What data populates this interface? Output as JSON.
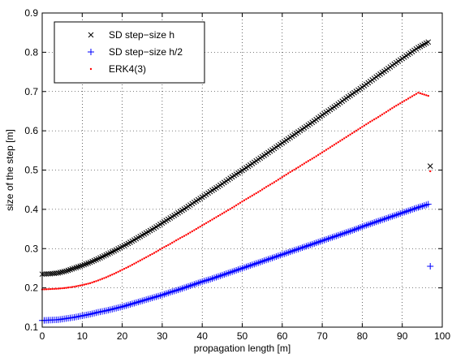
{
  "chart_data": {
    "type": "scatter",
    "title": "",
    "xlabel": "propagation length [m]",
    "ylabel": "size of the step [m]",
    "xlim": [
      0,
      100
    ],
    "ylim": [
      0.1,
      0.9
    ],
    "xticks": [
      0,
      10,
      20,
      30,
      40,
      50,
      60,
      70,
      80,
      90,
      100
    ],
    "yticks": [
      0.1,
      0.2,
      0.3,
      0.4,
      0.5,
      0.6,
      0.7,
      0.8,
      0.9
    ],
    "xtick_labels": [
      "0",
      "10",
      "20",
      "30",
      "40",
      "50",
      "60",
      "70",
      "80",
      "90",
      "100"
    ],
    "ytick_labels": [
      "0.1",
      "0.2",
      "0.3",
      "0.4",
      "0.5",
      "0.6",
      "0.7",
      "0.8",
      "0.9"
    ],
    "grid": true,
    "legend_position": "top-left",
    "series": [
      {
        "name": "SD step−size h",
        "marker": "x",
        "color": "#000000",
        "x": [
          0,
          2,
          4,
          6,
          8,
          10,
          12,
          14,
          16,
          18,
          20,
          22,
          24,
          26,
          28,
          30,
          32,
          34,
          36,
          38,
          40,
          42,
          44,
          46,
          48,
          50,
          52,
          54,
          56,
          58,
          60,
          62,
          64,
          66,
          68,
          70,
          72,
          74,
          76,
          78,
          80,
          82,
          84,
          86,
          88,
          90,
          92,
          94,
          96.5
        ],
        "y": [
          0.235,
          0.236,
          0.238,
          0.243,
          0.25,
          0.257,
          0.265,
          0.274,
          0.284,
          0.294,
          0.305,
          0.316,
          0.328,
          0.34,
          0.352,
          0.365,
          0.378,
          0.391,
          0.404,
          0.418,
          0.431,
          0.445,
          0.458,
          0.472,
          0.486,
          0.499,
          0.513,
          0.527,
          0.541,
          0.555,
          0.569,
          0.583,
          0.597,
          0.611,
          0.625,
          0.64,
          0.654,
          0.668,
          0.683,
          0.697,
          0.711,
          0.726,
          0.741,
          0.755,
          0.77,
          0.784,
          0.798,
          0.812,
          0.826
        ],
        "outlier": {
          "x": 97,
          "y": 0.51
        }
      },
      {
        "name": "SD step−size h/2",
        "marker": "+",
        "color": "#0000ff",
        "x": [
          0,
          2,
          4,
          6,
          8,
          10,
          12,
          14,
          16,
          18,
          20,
          22,
          24,
          26,
          28,
          30,
          32,
          34,
          36,
          38,
          40,
          42,
          44,
          46,
          48,
          50,
          52,
          54,
          56,
          58,
          60,
          62,
          64,
          66,
          68,
          70,
          72,
          74,
          76,
          78,
          80,
          82,
          84,
          86,
          88,
          90,
          92,
          94,
          96.5
        ],
        "y": [
          0.117,
          0.118,
          0.119,
          0.122,
          0.125,
          0.129,
          0.133,
          0.138,
          0.142,
          0.147,
          0.152,
          0.158,
          0.164,
          0.17,
          0.176,
          0.182,
          0.189,
          0.195,
          0.202,
          0.209,
          0.216,
          0.222,
          0.229,
          0.236,
          0.243,
          0.25,
          0.257,
          0.264,
          0.271,
          0.278,
          0.285,
          0.292,
          0.299,
          0.306,
          0.313,
          0.32,
          0.327,
          0.334,
          0.341,
          0.348,
          0.356,
          0.363,
          0.37,
          0.377,
          0.384,
          0.391,
          0.398,
          0.405,
          0.413
        ],
        "outlier": {
          "x": 97,
          "y": 0.255
        }
      },
      {
        "name": "ERK4(3)",
        "marker": ".",
        "color": "#ff0000",
        "x": [
          0,
          2,
          4,
          6,
          8,
          10,
          12,
          14,
          16,
          18,
          20,
          22,
          24,
          26,
          28,
          30,
          32,
          34,
          36,
          38,
          40,
          42,
          44,
          46,
          48,
          50,
          52,
          54,
          56,
          58,
          60,
          62,
          64,
          66,
          68,
          70,
          72,
          74,
          76,
          78,
          80,
          82,
          84,
          86,
          88,
          90,
          92,
          94,
          96.5
        ],
        "y": [
          0.196,
          0.197,
          0.198,
          0.2,
          0.203,
          0.207,
          0.212,
          0.219,
          0.227,
          0.236,
          0.246,
          0.256,
          0.267,
          0.278,
          0.289,
          0.301,
          0.312,
          0.324,
          0.335,
          0.347,
          0.359,
          0.371,
          0.383,
          0.395,
          0.407,
          0.42,
          0.432,
          0.444,
          0.457,
          0.469,
          0.482,
          0.495,
          0.507,
          0.52,
          0.532,
          0.545,
          0.558,
          0.571,
          0.584,
          0.597,
          0.61,
          0.623,
          0.635,
          0.648,
          0.661,
          0.673,
          0.685,
          0.697,
          0.689
        ],
        "outlier": {
          "x": 97,
          "y": 0.497
        }
      }
    ]
  }
}
